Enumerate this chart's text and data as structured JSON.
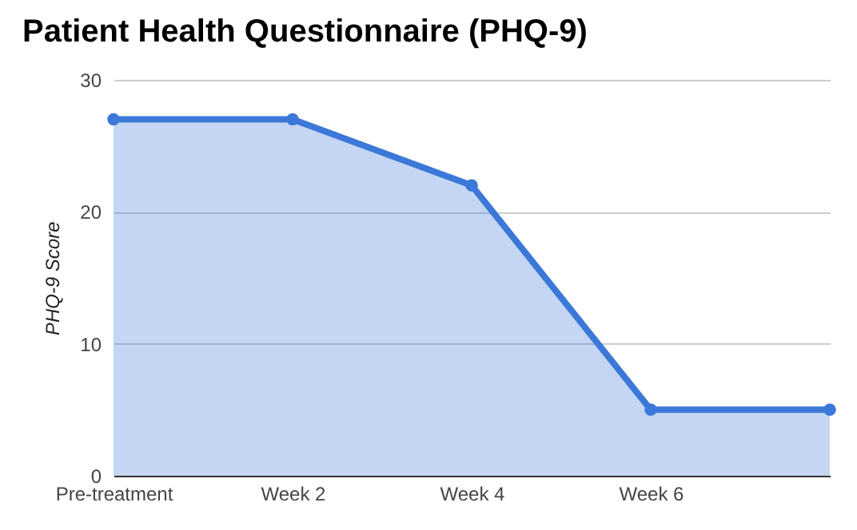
{
  "chart_data": {
    "type": "area",
    "title": "Patient Health Questionnaire (PHQ-9)",
    "ylabel": "PHQ-9 Score",
    "categories": [
      "Pre-treatment",
      "Week 2",
      "Week 4",
      "Week 6",
      null
    ],
    "series": [
      {
        "color": "#3c78d8",
        "values": [
          27,
          27,
          22,
          5,
          5
        ]
      }
    ],
    "ylim": [
      0,
      30
    ],
    "yticks": [
      0,
      10,
      20,
      30
    ],
    "grid": "y",
    "marker": "circle",
    "line_style": "solid"
  }
}
